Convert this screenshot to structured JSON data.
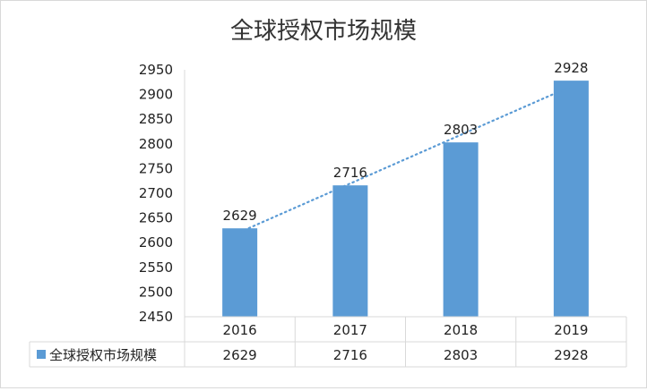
{
  "chart_data": {
    "type": "bar",
    "title": "全球授权市场规模",
    "categories": [
      "2016",
      "2017",
      "2018",
      "2019"
    ],
    "series": [
      {
        "name": "全球授权市场规模",
        "values": [
          2629,
          2716,
          2803,
          2928
        ],
        "color": "#5b9bd5"
      }
    ],
    "ylim": [
      2450,
      2950
    ],
    "yticks": [
      2450,
      2500,
      2550,
      2600,
      2650,
      2700,
      2750,
      2800,
      2850,
      2900,
      2950
    ],
    "data_labels": true,
    "trendline": {
      "type": "linear",
      "style": "dotted",
      "color": "#5b9bd5"
    },
    "data_table": true,
    "legend_placement": "data-table",
    "grid": false,
    "xlabel": "",
    "ylabel": ""
  }
}
